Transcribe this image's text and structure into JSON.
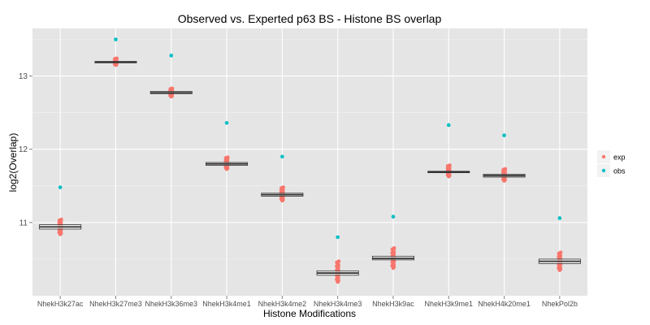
{
  "chart_data": {
    "type": "boxplot-with-points",
    "title": "Observed vs. Experted p63 BS - Histone BS overlap",
    "xlabel": "Histone Modifications",
    "ylabel": "log2(Overlap)",
    "ylim": [
      10.0,
      13.65
    ],
    "yticks": [
      11,
      12,
      13
    ],
    "categories": [
      "NhekH3k27ac",
      "NhekH3k27me3",
      "NhekH3k36me3",
      "NhekH3k4me1",
      "NhekH3k4me2",
      "NhekH3k4me3",
      "NhekH3k9ac",
      "NhekH3k9me1",
      "NhekH4k20me1",
      "NhekPol2b"
    ],
    "series": [
      {
        "name": "exp",
        "color": "#F8766D",
        "median": [
          10.94,
          13.19,
          12.77,
          11.8,
          11.38,
          10.31,
          10.51,
          11.69,
          11.64,
          10.47
        ],
        "q1": [
          10.91,
          13.18,
          12.76,
          11.78,
          11.36,
          10.28,
          10.49,
          11.68,
          11.62,
          10.44
        ],
        "q3": [
          10.97,
          13.2,
          12.79,
          11.82,
          11.4,
          10.34,
          10.54,
          11.7,
          11.66,
          10.5
        ],
        "min": [
          10.84,
          13.15,
          12.72,
          11.73,
          11.3,
          10.19,
          10.38,
          11.63,
          11.57,
          10.35
        ],
        "max": [
          11.04,
          13.24,
          12.83,
          11.89,
          11.48,
          10.47,
          10.65,
          11.78,
          11.73,
          10.59
        ]
      },
      {
        "name": "obs",
        "color": "#00BFC4",
        "values": [
          11.48,
          13.5,
          13.28,
          12.36,
          11.9,
          10.8,
          11.08,
          12.33,
          12.19,
          11.06
        ]
      }
    ],
    "legend": {
      "position": "right",
      "entries": [
        "exp",
        "obs"
      ]
    },
    "grid": true,
    "panel_background": "#E5E5E5",
    "gridline_color": "#FFFFFF"
  }
}
